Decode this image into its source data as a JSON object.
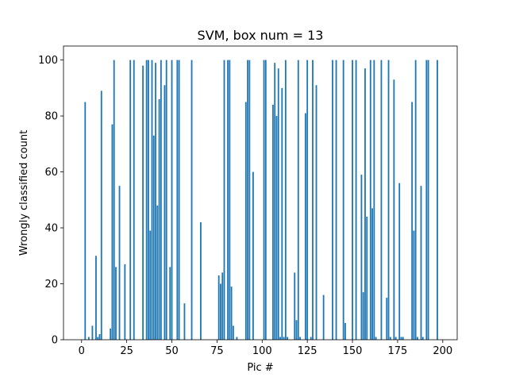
{
  "chart_data": {
    "type": "bar",
    "title": "SVM, box num = 13",
    "xlabel": "Pic #",
    "ylabel": "Wrongly classified count",
    "xlim": [
      -10,
      208
    ],
    "ylim": [
      0,
      105
    ],
    "xticks": [
      0,
      25,
      50,
      75,
      100,
      125,
      150,
      175,
      200
    ],
    "yticks": [
      0,
      20,
      40,
      60,
      80,
      100
    ],
    "bar_color": "#1f77b4",
    "grid": false,
    "legend": "none",
    "x": [
      2,
      4,
      6,
      8,
      9,
      10,
      11,
      16,
      17,
      18,
      19,
      21,
      24,
      27,
      29,
      34,
      36,
      37,
      38,
      39,
      40,
      41,
      42,
      43,
      44,
      46,
      47,
      49,
      50,
      53,
      54,
      57,
      61,
      66,
      76,
      77,
      78,
      79,
      81,
      82,
      83,
      84,
      86,
      91,
      92,
      93,
      95,
      101,
      102,
      106,
      107,
      108,
      109,
      110,
      111,
      112,
      113,
      114,
      118,
      119,
      120,
      121,
      124,
      125,
      127,
      128,
      130,
      134,
      139,
      141,
      145,
      146,
      150,
      152,
      155,
      156,
      157,
      158,
      160,
      161,
      162,
      163,
      166,
      169,
      170,
      171,
      173,
      174,
      176,
      177,
      178,
      183,
      184,
      185,
      186,
      188,
      189,
      191,
      192,
      197
    ],
    "values": [
      85,
      1,
      5,
      30,
      1,
      2,
      89,
      4,
      77,
      100,
      26,
      55,
      27,
      100,
      100,
      98,
      100,
      100,
      39,
      100,
      73,
      99,
      48,
      86,
      100,
      91,
      100,
      26,
      100,
      100,
      100,
      13,
      100,
      42,
      23,
      20,
      24,
      100,
      100,
      100,
      19,
      5,
      1,
      85,
      100,
      100,
      60,
      100,
      100,
      84,
      99,
      80,
      97,
      1,
      90,
      1,
      100,
      1,
      24,
      7,
      100,
      1,
      81,
      100,
      1,
      100,
      91,
      16,
      100,
      100,
      100,
      6,
      100,
      100,
      59,
      17,
      97,
      44,
      100,
      47,
      100,
      1,
      100,
      15,
      100,
      1,
      93,
      1,
      56,
      1,
      1,
      85,
      39,
      100,
      1,
      55,
      1,
      100,
      100,
      100
    ]
  }
}
